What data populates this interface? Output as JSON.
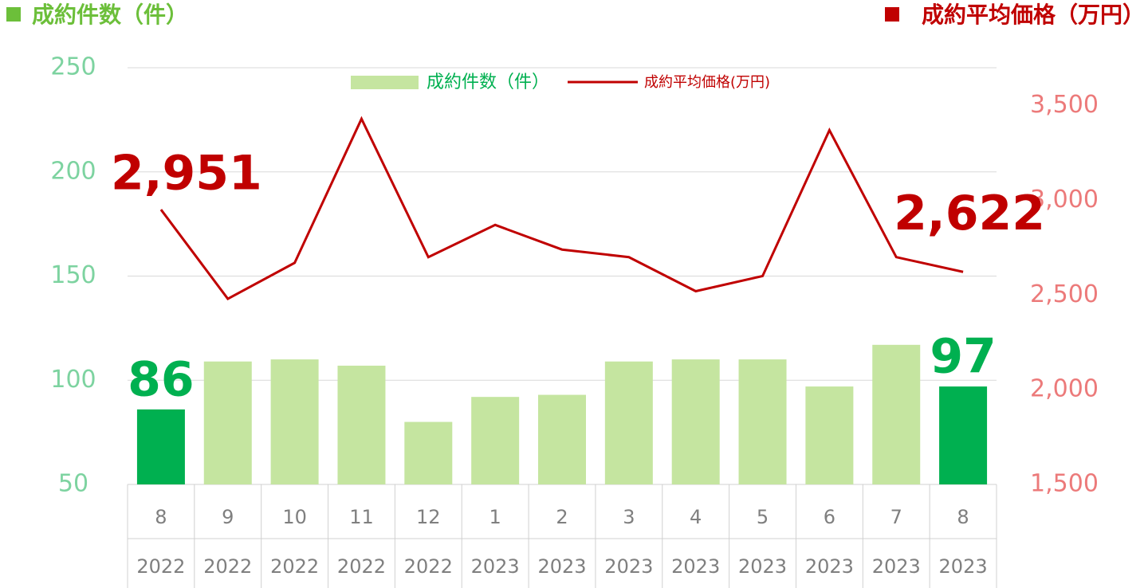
{
  "chart_data": {
    "type": "bar_line",
    "y_label": "成約件数（件）",
    "y2_label": "成約平均価格（万円）",
    "categories": [
      "8",
      "9",
      "10",
      "11",
      "12",
      "1",
      "2",
      "3",
      "4",
      "5",
      "6",
      "7",
      "8"
    ],
    "category_years": [
      "2022",
      "2022",
      "2022",
      "2022",
      "2022",
      "2023",
      "2023",
      "2023",
      "2023",
      "2023",
      "2023",
      "2023",
      "2023"
    ],
    "series": [
      {
        "name": "成約件数（件）",
        "type": "bar",
        "color": "#c5e5a0",
        "highlight_color": "#00b050",
        "values": [
          86,
          109,
          110,
          107,
          80,
          92,
          93,
          109,
          110,
          110,
          97,
          117,
          97
        ],
        "value_labels": [
          "86",
          null,
          null,
          null,
          null,
          null,
          null,
          null,
          null,
          null,
          null,
          null,
          "97"
        ]
      },
      {
        "name": "成約平均価格(万円)",
        "type": "line",
        "axis": "y2",
        "color": "#c00000",
        "values": [
          2951,
          2480,
          2670,
          3430,
          2700,
          2870,
          2740,
          2700,
          2520,
          2600,
          3370,
          2700,
          2622
        ],
        "value_labels": [
          "2,951",
          null,
          null,
          null,
          null,
          null,
          null,
          null,
          null,
          null,
          null,
          null,
          "2,622"
        ]
      }
    ],
    "ylim": [
      50,
      250
    ],
    "yticks": [
      50,
      100,
      150,
      200,
      250
    ],
    "y2lim": [
      1500,
      3700
    ],
    "y2ticks": [
      {
        "value": 1500,
        "label": "1,500"
      },
      {
        "value": 2000,
        "label": "2,000"
      },
      {
        "value": 2500,
        "label": "2,500"
      },
      {
        "value": 3000,
        "label": "3,000"
      },
      {
        "value": 3500,
        "label": "3,500"
      }
    ],
    "grid": true
  }
}
